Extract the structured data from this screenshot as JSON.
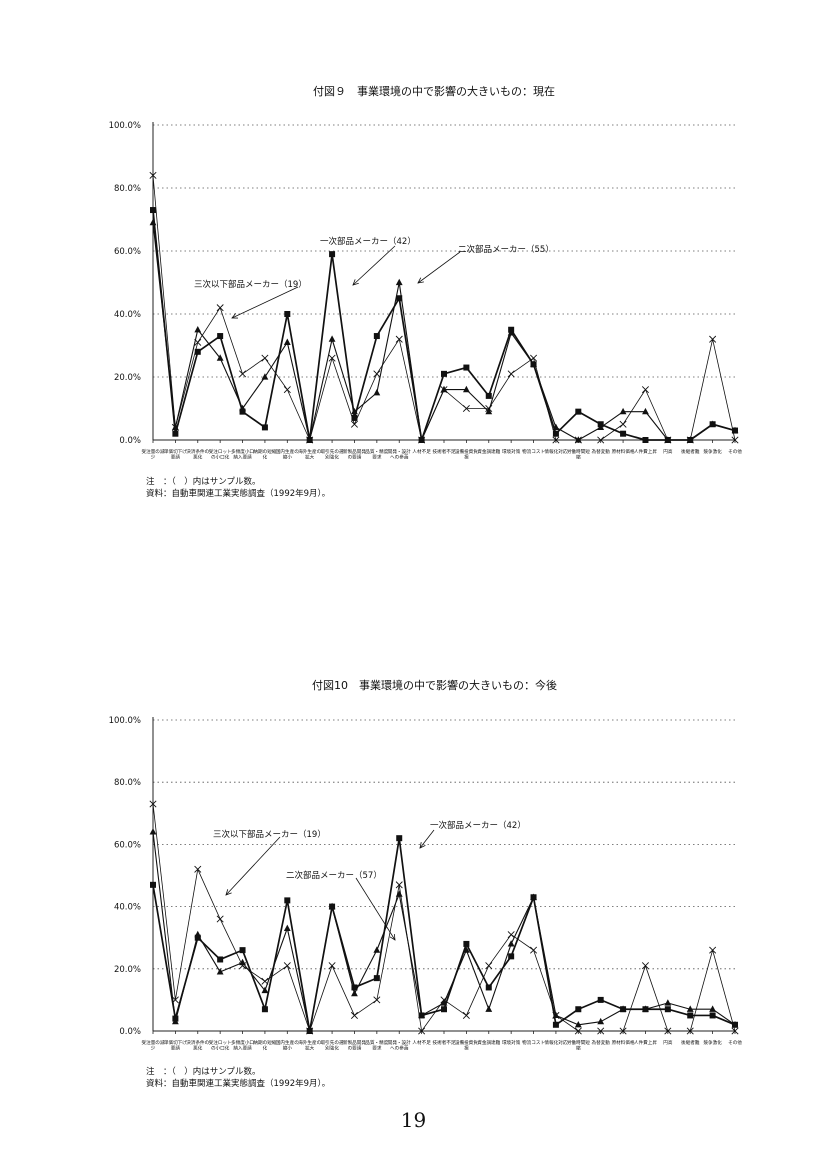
{
  "page": {
    "number": "19"
  },
  "chart_data": [
    {
      "type": "line",
      "title": "付図９　事業環境の中で影響の大きいもの：現在",
      "ylim": [
        0,
        100
      ],
      "yticks": [
        "0.0%",
        "20.0%",
        "40.0%",
        "60.0%",
        "80.0%",
        "100.0%"
      ],
      "grid": true,
      "categories": [
        "受注量の減少",
        "単価切下げ要請",
        "決済条件の悪化",
        "受注ロットの小口化",
        "多頻度小口納入要請",
        "納期の短縮化",
        "国内生産の縮小",
        "海外生産の拡大",
        "取引先の選別強化",
        "新製品開発の要請",
        "品質・精度要求",
        "開発・設計への参画",
        "人材不足",
        "技術者不足",
        "設備投資負担",
        "資金調達難",
        "環境対策",
        "物流コスト",
        "情報化対応",
        "労働時間短縮",
        "為替変動",
        "原材料価格",
        "人件費上昇",
        "円高",
        "後継者難",
        "競争激化",
        "その他"
      ],
      "series": [
        {
          "name": "一次部品メーカー（42）",
          "marker": "square",
          "values": [
            73,
            2,
            28,
            33,
            9,
            4,
            40,
            0,
            59,
            7,
            33,
            45,
            0,
            21,
            23,
            14,
            35,
            24,
            2,
            9,
            5,
            2,
            0,
            0,
            0,
            5,
            3
          ]
        },
        {
          "name": "二次部品メーカー（55）",
          "marker": "triangle",
          "values": [
            69,
            4,
            35,
            26,
            10,
            20,
            31,
            0,
            32,
            9,
            15,
            50,
            0,
            16,
            16,
            9,
            34,
            24,
            4,
            0,
            4,
            9,
            9,
            0,
            0,
            5,
            3
          ]
        },
        {
          "name": "三次以下部品メーカー（19）",
          "marker": "x",
          "values": [
            84,
            4,
            31,
            42,
            21,
            26,
            16,
            0,
            26,
            5,
            21,
            32,
            0,
            16,
            10,
            10,
            21,
            26,
            0,
            0,
            0,
            5,
            16,
            0,
            0,
            32,
            0
          ]
        }
      ],
      "note": "注　：（　）内はサンプル数。",
      "source": "資料：自動車関連工業実態調査（1992年9月）。"
    },
    {
      "type": "line",
      "title": "付図10　事業環境の中で影響の大きいもの：今後",
      "ylim": [
        0,
        100
      ],
      "yticks": [
        "0.0%",
        "20.0%",
        "40.0%",
        "60.0%",
        "80.0%",
        "100.0%"
      ],
      "grid": true,
      "categories": [
        "受注量の減少",
        "単価切下げ要請",
        "決済条件の悪化",
        "受注ロットの小口化",
        "多頻度小口納入要請",
        "納期の短縮化",
        "国内生産の縮小",
        "海外生産の拡大",
        "取引先の選別強化",
        "新製品開発の要請",
        "品質・精度要求",
        "開発・設計への参画",
        "人材不足",
        "技術者不足",
        "設備投資負担",
        "資金調達難",
        "環境対策",
        "物流コスト",
        "情報化対応",
        "労働時間短縮",
        "為替変動",
        "原材料価格",
        "人件費上昇",
        "円高",
        "後継者難",
        "競争激化",
        "その他"
      ],
      "series": [
        {
          "name": "一次部品メーカー（42）",
          "marker": "square",
          "values": [
            47,
            4,
            30,
            23,
            26,
            7,
            42,
            0,
            40,
            14,
            17,
            62,
            5,
            7,
            28,
            14,
            24,
            43,
            2,
            7,
            10,
            7,
            7,
            7,
            5,
            5,
            2
          ]
        },
        {
          "name": "二次部品メーカー（57）",
          "marker": "triangle",
          "values": [
            64,
            3,
            31,
            19,
            22,
            13,
            33,
            0,
            40,
            12,
            26,
            44,
            5,
            9,
            26,
            7,
            28,
            43,
            5,
            2,
            3,
            7,
            7,
            9,
            7,
            7,
            2
          ]
        },
        {
          "name": "三次以下部品メーカー（19）",
          "marker": "x",
          "values": [
            73,
            10,
            52,
            36,
            21,
            16,
            21,
            0,
            21,
            5,
            10,
            47,
            0,
            10,
            5,
            21,
            31,
            26,
            5,
            0,
            0,
            0,
            21,
            0,
            0,
            26,
            0
          ]
        }
      ],
      "note": "注　：（　）内はサンプル数。",
      "source": "資料：自動車関連工業実態調査（1992年9月）。"
    }
  ]
}
